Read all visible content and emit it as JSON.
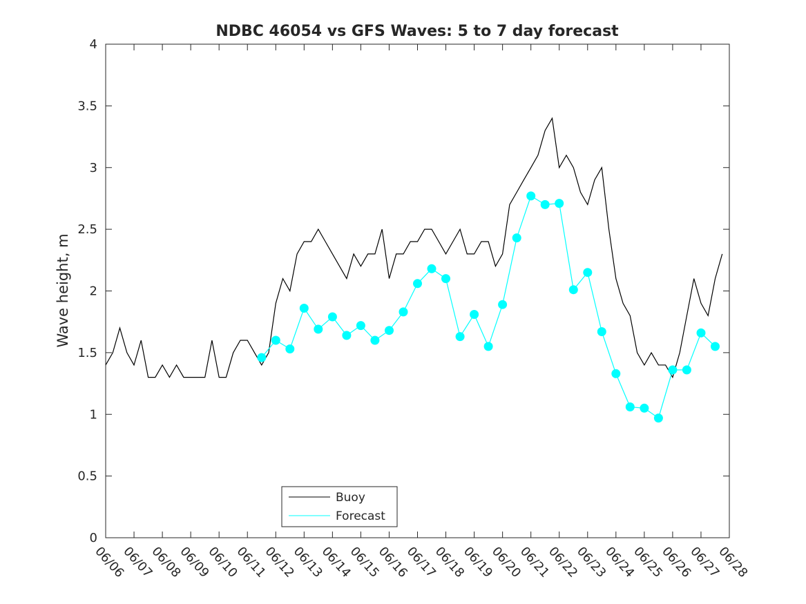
{
  "chart_data": {
    "type": "line",
    "title": "NDBC 46054 vs GFS Waves: 5 to 7 day forecast",
    "xlabel": "",
    "ylabel": "Wave height, m",
    "xlim": [
      "06/06",
      "06/28"
    ],
    "ylim": [
      0,
      4
    ],
    "x_tick_labels": [
      "06/06",
      "06/07",
      "06/08",
      "06/09",
      "06/10",
      "06/11",
      "06/12",
      "06/13",
      "06/14",
      "06/15",
      "06/16",
      "06/17",
      "06/18",
      "06/19",
      "06/20",
      "06/21",
      "06/22",
      "06/23",
      "06/24",
      "06/25",
      "06/26",
      "06/27",
      "06/28"
    ],
    "y_tick_labels": [
      "0",
      "0.5",
      "1",
      "1.5",
      "2",
      "2.5",
      "3",
      "3.5",
      "4"
    ],
    "grid": false,
    "legend": {
      "position": "bottom-center",
      "entries": [
        "Buoy",
        "Forecast"
      ]
    },
    "colors": {
      "buoy": "#000000",
      "forecast": "#00ffff"
    },
    "series": [
      {
        "name": "Buoy",
        "x": [
          "06/06 00:00",
          "06/06 06:00",
          "06/06 12:00",
          "06/06 18:00",
          "06/07 00:00",
          "06/07 06:00",
          "06/07 12:00",
          "06/07 18:00",
          "06/08 00:00",
          "06/08 06:00",
          "06/08 12:00",
          "06/08 18:00",
          "06/09 00:00",
          "06/09 06:00",
          "06/09 12:00",
          "06/09 18:00",
          "06/10 00:00",
          "06/10 06:00",
          "06/10 12:00",
          "06/10 18:00",
          "06/11 00:00",
          "06/11 06:00",
          "06/11 12:00",
          "06/11 18:00",
          "06/12 00:00",
          "06/12 06:00",
          "06/12 12:00",
          "06/12 18:00",
          "06/13 00:00",
          "06/13 06:00",
          "06/13 12:00",
          "06/13 18:00",
          "06/14 00:00",
          "06/14 06:00",
          "06/14 12:00",
          "06/14 18:00",
          "06/15 00:00",
          "06/15 06:00",
          "06/15 12:00",
          "06/15 18:00",
          "06/16 00:00",
          "06/16 06:00",
          "06/16 12:00",
          "06/16 18:00",
          "06/17 00:00",
          "06/17 06:00",
          "06/17 12:00",
          "06/17 18:00",
          "06/18 00:00",
          "06/18 06:00",
          "06/18 12:00",
          "06/18 18:00",
          "06/19 00:00",
          "06/19 06:00",
          "06/19 12:00",
          "06/19 18:00",
          "06/20 00:00",
          "06/20 06:00",
          "06/20 12:00",
          "06/20 18:00",
          "06/21 00:00",
          "06/21 06:00",
          "06/21 12:00",
          "06/21 18:00",
          "06/22 00:00",
          "06/22 06:00",
          "06/22 12:00",
          "06/22 18:00",
          "06/23 00:00",
          "06/23 06:00",
          "06/23 12:00",
          "06/23 18:00",
          "06/24 00:00",
          "06/24 06:00",
          "06/24 12:00",
          "06/24 18:00",
          "06/25 00:00",
          "06/25 06:00",
          "06/25 12:00",
          "06/25 18:00",
          "06/26 00:00",
          "06/26 06:00",
          "06/26 12:00",
          "06/26 18:00",
          "06/27 00:00",
          "06/27 06:00",
          "06/27 12:00",
          "06/27 18:00"
        ],
        "values": [
          1.4,
          1.5,
          1.7,
          1.5,
          1.4,
          1.6,
          1.3,
          1.3,
          1.4,
          1.3,
          1.4,
          1.3,
          1.3,
          1.3,
          1.3,
          1.6,
          1.3,
          1.3,
          1.5,
          1.6,
          1.6,
          1.5,
          1.4,
          1.5,
          1.9,
          2.1,
          2.0,
          2.3,
          2.4,
          2.4,
          2.5,
          2.4,
          2.3,
          2.2,
          2.1,
          2.3,
          2.2,
          2.3,
          2.3,
          2.5,
          2.1,
          2.3,
          2.3,
          2.4,
          2.4,
          2.5,
          2.5,
          2.4,
          2.3,
          2.4,
          2.5,
          2.3,
          2.3,
          2.4,
          2.4,
          2.2,
          2.3,
          2.7,
          2.8,
          2.9,
          3.0,
          3.1,
          3.3,
          3.4,
          3.0,
          3.1,
          3.0,
          2.8,
          2.7,
          2.9,
          3.0,
          2.5,
          2.1,
          1.9,
          1.8,
          1.5,
          1.4,
          1.5,
          1.4,
          1.4,
          1.3,
          1.5,
          1.8,
          2.1,
          1.9,
          1.8,
          2.1,
          2.3
        ]
      },
      {
        "name": "Forecast",
        "x": [
          "06/11 12:00",
          "06/12 00:00",
          "06/12 12:00",
          "06/13 00:00",
          "06/13 12:00",
          "06/14 00:00",
          "06/14 12:00",
          "06/15 00:00",
          "06/15 12:00",
          "06/16 00:00",
          "06/16 12:00",
          "06/17 00:00",
          "06/17 12:00",
          "06/18 00:00",
          "06/18 12:00",
          "06/19 00:00",
          "06/19 12:00",
          "06/20 00:00",
          "06/20 12:00",
          "06/21 00:00",
          "06/21 12:00",
          "06/22 00:00",
          "06/22 12:00",
          "06/23 00:00",
          "06/23 12:00",
          "06/24 00:00",
          "06/24 12:00",
          "06/25 00:00",
          "06/25 12:00",
          "06/26 00:00",
          "06/26 12:00",
          "06/27 00:00",
          "06/27 12:00"
        ],
        "values": [
          1.46,
          1.6,
          1.53,
          1.86,
          1.69,
          1.79,
          1.64,
          1.72,
          1.6,
          1.68,
          1.83,
          2.06,
          2.18,
          2.1,
          1.63,
          1.81,
          1.55,
          1.89,
          2.43,
          2.77,
          2.7,
          2.71,
          2.01,
          2.15,
          1.67,
          1.33,
          1.06,
          1.05,
          0.97,
          1.36,
          1.36,
          1.66,
          1.55
        ]
      }
    ]
  }
}
